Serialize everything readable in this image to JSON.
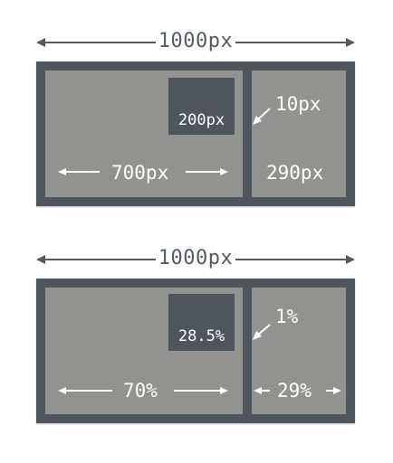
{
  "diagrams": [
    {
      "total_width_label": "1000px",
      "box_label": "200px",
      "gap_label": "10px",
      "main_width_label": "700px",
      "side_width_label": "290px"
    },
    {
      "total_width_label": "1000px",
      "box_label": "28.5%",
      "gap_label": "1%",
      "main_width_label": "70%",
      "side_width_label": "29%"
    }
  ],
  "colors": {
    "frame": "#50545b",
    "pane": "#929390",
    "dimension_text": "#555a61",
    "label_text": "#ffffff"
  }
}
